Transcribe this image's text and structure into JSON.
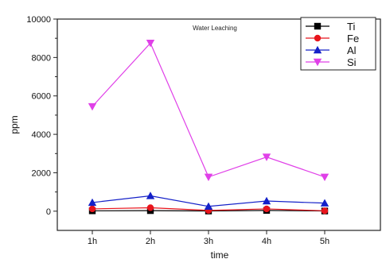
{
  "chart_data": {
    "type": "line",
    "title": "Water Leaching",
    "xlabel": "time",
    "ylabel": "ppm",
    "categories": [
      "1h",
      "2h",
      "3h",
      "4h",
      "5h"
    ],
    "ylim": [
      -1000,
      10000
    ],
    "yticks": [
      0,
      2000,
      4000,
      6000,
      8000,
      10000
    ],
    "ytick_labels": [
      "0",
      "2000",
      "4000",
      "6000",
      "8000",
      "10000"
    ],
    "grid": false,
    "legend_position": "top-right",
    "series": [
      {
        "name": "Ti",
        "values": [
          20,
          30,
          10,
          40,
          10
        ],
        "color": "#000000",
        "marker": "square"
      },
      {
        "name": "Fe",
        "values": [
          120,
          180,
          40,
          120,
          20
        ],
        "color": "#e8141c",
        "marker": "circle"
      },
      {
        "name": "Al",
        "values": [
          450,
          800,
          250,
          530,
          420
        ],
        "color": "#1420c8",
        "marker": "triangle-up"
      },
      {
        "name": "Si",
        "values": [
          5450,
          8750,
          1780,
          2820,
          1780
        ],
        "color": "#e040e8",
        "marker": "triangle-down"
      }
    ]
  }
}
